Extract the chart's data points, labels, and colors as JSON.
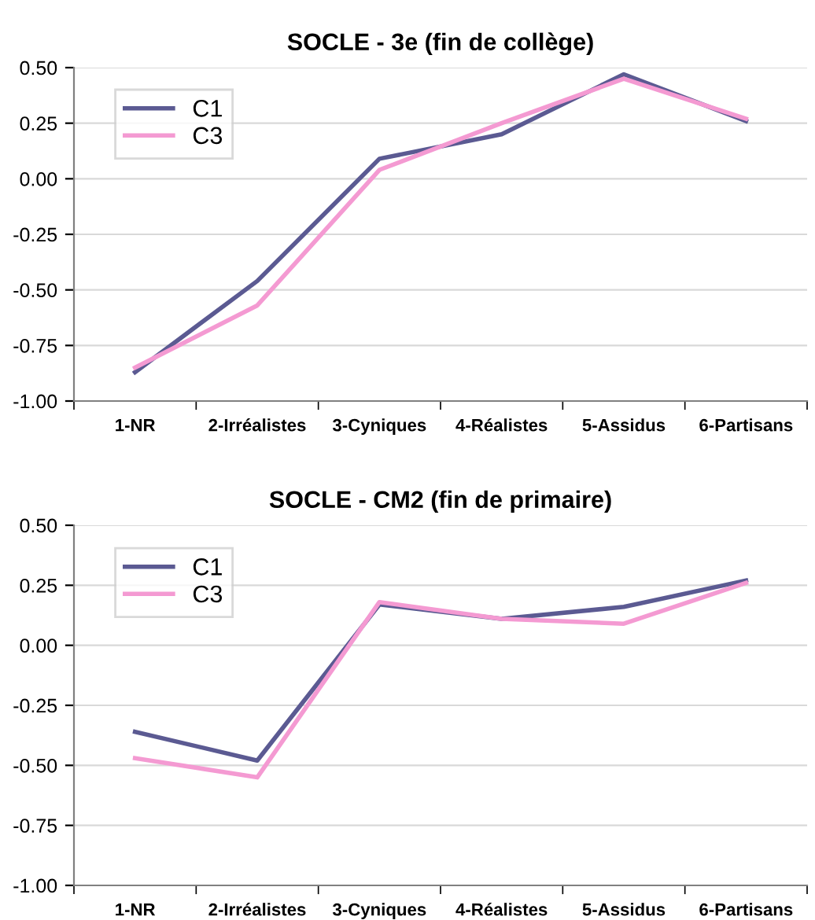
{
  "chart_data": [
    {
      "type": "line",
      "title": "SOCLE - 3e (fin de collège)",
      "categories": [
        "1-NR",
        "2-Irréalistes",
        "3-Cyniques",
        "4-Réalistes",
        "5-Assidus",
        "6-Partisans"
      ],
      "series": [
        {
          "name": "C1",
          "color": "#5b5a92",
          "values": [
            -0.87,
            -0.46,
            0.09,
            0.2,
            0.47,
            0.26
          ]
        },
        {
          "name": "C3",
          "color": "#f49ad2",
          "values": [
            -0.85,
            -0.57,
            0.04,
            0.25,
            0.45,
            0.27
          ]
        }
      ],
      "ylim": [
        -1.0,
        0.5
      ],
      "yticks": [
        {
          "value": -1.0,
          "label": "-1.00"
        },
        {
          "value": -0.75,
          "label": "-0.75"
        },
        {
          "value": -0.5,
          "label": "-0.50"
        },
        {
          "value": -0.25,
          "label": "-0.25"
        },
        {
          "value": 0.0,
          "label": "0.00"
        },
        {
          "value": 0.25,
          "label": "0.25"
        },
        {
          "value": 0.5,
          "label": "0.50"
        }
      ],
      "grid": "y",
      "legend": "top left",
      "marker": "none",
      "line_style": "solid"
    },
    {
      "type": "line",
      "title": "SOCLE - CM2 (fin de primaire)",
      "categories": [
        "1-NR",
        "2-Irréalistes",
        "3-Cyniques",
        "4-Réalistes",
        "5-Assidus",
        "6-Partisans"
      ],
      "series": [
        {
          "name": "C1",
          "color": "#5b5a92",
          "values": [
            -0.36,
            -0.48,
            0.17,
            0.11,
            0.16,
            0.27
          ]
        },
        {
          "name": "C3",
          "color": "#f49ad2",
          "values": [
            -0.47,
            -0.55,
            0.18,
            0.11,
            0.09,
            0.26
          ]
        }
      ],
      "ylim": [
        -1.0,
        0.5
      ],
      "yticks": [
        {
          "value": -1.0,
          "label": "-1.00"
        },
        {
          "value": -0.75,
          "label": "-0.75"
        },
        {
          "value": -0.5,
          "label": "-0.50"
        },
        {
          "value": -0.25,
          "label": "-0.25"
        },
        {
          "value": 0.0,
          "label": "0.00"
        },
        {
          "value": 0.25,
          "label": "0.25"
        },
        {
          "value": 0.5,
          "label": "0.50"
        }
      ],
      "grid": "y",
      "legend": "top left",
      "marker": "none",
      "line_style": "solid"
    }
  ]
}
